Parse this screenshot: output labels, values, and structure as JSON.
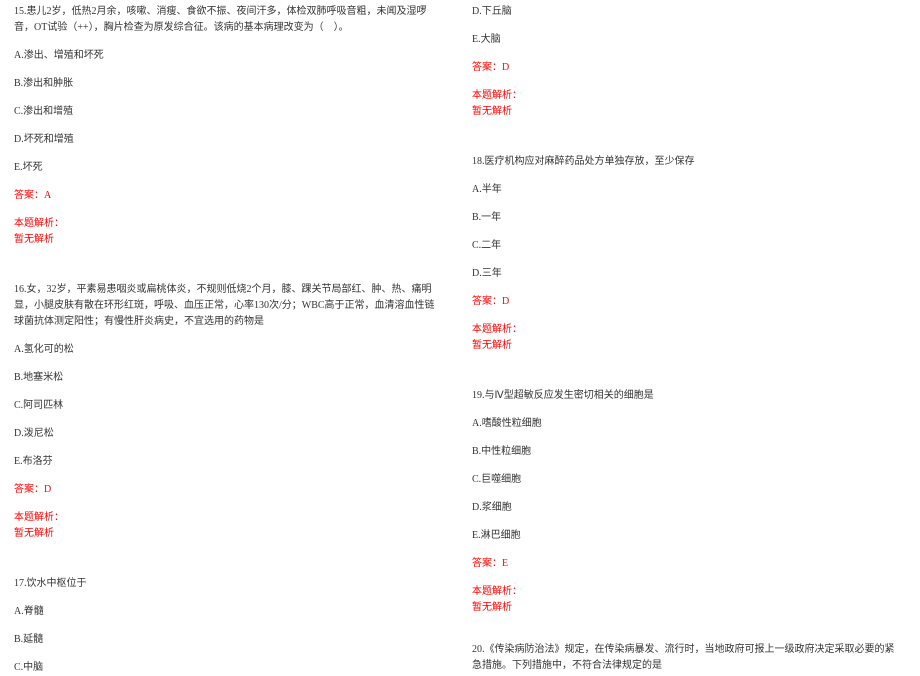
{
  "colors": {
    "text": "#333333",
    "red": "#ff0000",
    "background": "#ffffff"
  },
  "typography": {
    "font_family": "SimSun",
    "font_size_pt": 8,
    "line_height": 1.6
  },
  "left": {
    "q15": {
      "stem": "15.患儿2岁，低热2月余，咳嗽、消瘦、食欲不振、夜间汗多，体检双肺呼吸音粗，未闻及湿啰音，OT试验（++），胸片检查为原发综合征。该病的基本病理改变为（　）。",
      "A": "A.渗出、增殖和坏死",
      "B": "B.渗出和肿胀",
      "C": "C.渗出和增殖",
      "D": "D.坏死和增殖",
      "E": "E.坏死",
      "answer": "答案：A",
      "analysis_label": "本题解析：",
      "analysis_body": "暂无解析"
    },
    "q16": {
      "stem": "16.女，32岁，平素易患咽炎或扁桃体炎，不规则低烧2个月，膝、踝关节局部红、肿、热、痛明显，小腿皮肤有散在环形红斑，呼吸、血压正常，心率130次/分；WBC高于正常，血清溶血性链球菌抗体测定阳性；有慢性肝炎病史，不宜选用的药物是",
      "A": "A.氢化可的松",
      "B": "B.地塞米松",
      "C": "C.阿司匹林",
      "D": "D.泼尼松",
      "E": "E.布洛芬",
      "answer": "答案：D",
      "analysis_label": "本题解析：",
      "analysis_body": "暂无解析"
    },
    "q17": {
      "stem": "17.饮水中枢位于",
      "A": "A.脊髓",
      "B": "B.延髓",
      "C": "C.中脑"
    }
  },
  "right": {
    "q17": {
      "D": "D.下丘脑",
      "E": "E.大脑",
      "answer": "答案：D",
      "analysis_label": "本题解析：",
      "analysis_body": "暂无解析"
    },
    "q18": {
      "stem": "18.医疗机构应对麻醉药品处方单独存放，至少保存",
      "A": "A.半年",
      "B": "B.一年",
      "C": "C.二年",
      "D": "D.三年",
      "answer": "答案：D",
      "analysis_label": "本题解析：",
      "analysis_body": "暂无解析"
    },
    "q19": {
      "stem": "19.与Ⅳ型超敏反应发生密切相关的细胞是",
      "A": "A.嗜酸性粒细胞",
      "B": "B.中性粒细胞",
      "C": "C.巨噬细胞",
      "D": "D.浆细胞",
      "E": "E.淋巴细胞",
      "answer": "答案：E",
      "analysis_label": "本题解析：",
      "analysis_body": "暂无解析"
    },
    "q20": {
      "stem": "20.《传染病防治法》规定，在传染病暴发、流行时，当地政府可报上一级政府决定采取必要的紧急措施。下列措施中，不符合法律规定的是"
    }
  }
}
